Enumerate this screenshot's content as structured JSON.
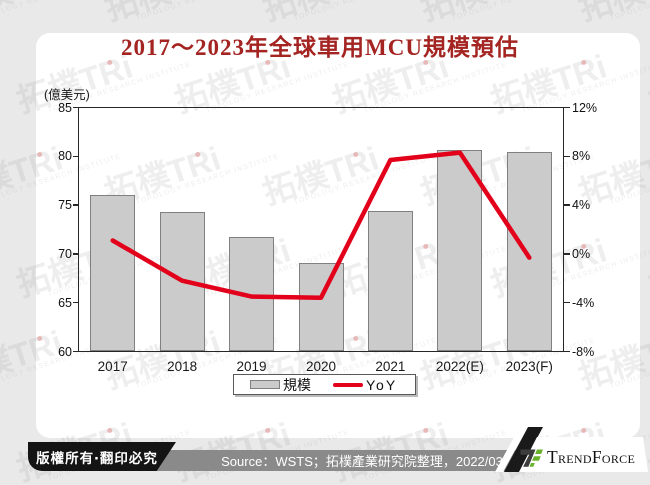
{
  "title": "2017～2023年全球車用MCU規模預估",
  "watermark": {
    "brand": "拓樸TRi",
    "subtitle": "TOPOLOGY RESEARCH INSTITUTE"
  },
  "chart_data": {
    "type": "bar+line combo",
    "categories": [
      "2017",
      "2018",
      "2019",
      "2020",
      "2021",
      "2022(E)",
      "2023(F)"
    ],
    "series": [
      {
        "name": "規模",
        "type": "bar",
        "axis": "left",
        "unit": "億美元",
        "values": [
          76.0,
          74.3,
          71.7,
          69.1,
          74.4,
          80.6,
          80.4
        ]
      },
      {
        "name": "YoY",
        "type": "line",
        "axis": "right",
        "unit": "%",
        "values": [
          1.1,
          -2.2,
          -3.5,
          -3.6,
          7.7,
          8.3,
          -0.3
        ]
      }
    ],
    "left_axis": {
      "label": "(億美元)",
      "min": 60,
      "max": 85,
      "ticks": [
        85,
        80,
        75,
        70,
        65,
        60
      ]
    },
    "right_axis": {
      "min": -8,
      "max": 12,
      "ticks": [
        12,
        8,
        4,
        0,
        -4,
        -8
      ],
      "suffix": "%"
    },
    "legend": {
      "position": "bottom",
      "entries": [
        "規模",
        "YoY"
      ]
    },
    "grid": false,
    "colors": {
      "title": "#a32421",
      "bar_fill": "#cbcbcb",
      "bar_border": "#808080",
      "line": "#e2001a",
      "footer_gray": "#8a8a8a",
      "footer_black": "#141414",
      "logo_green": "#68b32b",
      "logo_dark": "#3d3d3d",
      "page_bg": "#e9e9e9"
    }
  },
  "footer": {
    "copyright": "版權所有‧翻印必究",
    "source": "Source：WSTS；拓樸產業研究院整理，2022/03",
    "logo_text": "TrendForce"
  }
}
